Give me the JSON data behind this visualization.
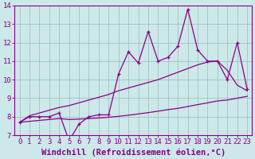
{
  "xlabel": "Windchill (Refroidissement éolien,°C)",
  "background_color": "#cce8e8",
  "line_color": "#880088",
  "grid_color": "#99bbbb",
  "xlim": [
    -0.5,
    23.5
  ],
  "ylim": [
    7,
    14
  ],
  "xticks": [
    0,
    1,
    2,
    3,
    4,
    5,
    6,
    7,
    8,
    9,
    10,
    11,
    12,
    13,
    14,
    15,
    16,
    17,
    18,
    19,
    20,
    21,
    22,
    23
  ],
  "yticks": [
    7,
    8,
    9,
    10,
    11,
    12,
    13,
    14
  ],
  "x_data": [
    0,
    1,
    2,
    3,
    4,
    5,
    6,
    7,
    8,
    9,
    10,
    11,
    12,
    13,
    14,
    15,
    16,
    17,
    18,
    19,
    20,
    21,
    22,
    23
  ],
  "y_main": [
    7.7,
    8.0,
    8.0,
    8.0,
    8.2,
    6.7,
    7.6,
    8.0,
    8.1,
    8.1,
    10.3,
    11.5,
    10.9,
    12.6,
    11.0,
    11.2,
    11.8,
    13.8,
    11.6,
    11.0,
    11.0,
    10.0,
    12.0,
    9.5
  ],
  "y_upper": [
    7.7,
    8.05,
    8.2,
    8.35,
    8.5,
    8.6,
    8.75,
    8.9,
    9.05,
    9.2,
    9.4,
    9.55,
    9.7,
    9.85,
    10.0,
    10.2,
    10.4,
    10.6,
    10.8,
    10.95,
    11.0,
    10.5,
    9.7,
    9.4
  ],
  "y_lower": [
    7.7,
    7.75,
    7.8,
    7.85,
    7.9,
    7.85,
    7.87,
    7.9,
    7.93,
    7.97,
    8.02,
    8.08,
    8.15,
    8.22,
    8.3,
    8.38,
    8.45,
    8.55,
    8.65,
    8.75,
    8.85,
    8.9,
    9.0,
    9.1
  ],
  "tick_fontsize": 6.5,
  "xlabel_fontsize": 7.5
}
